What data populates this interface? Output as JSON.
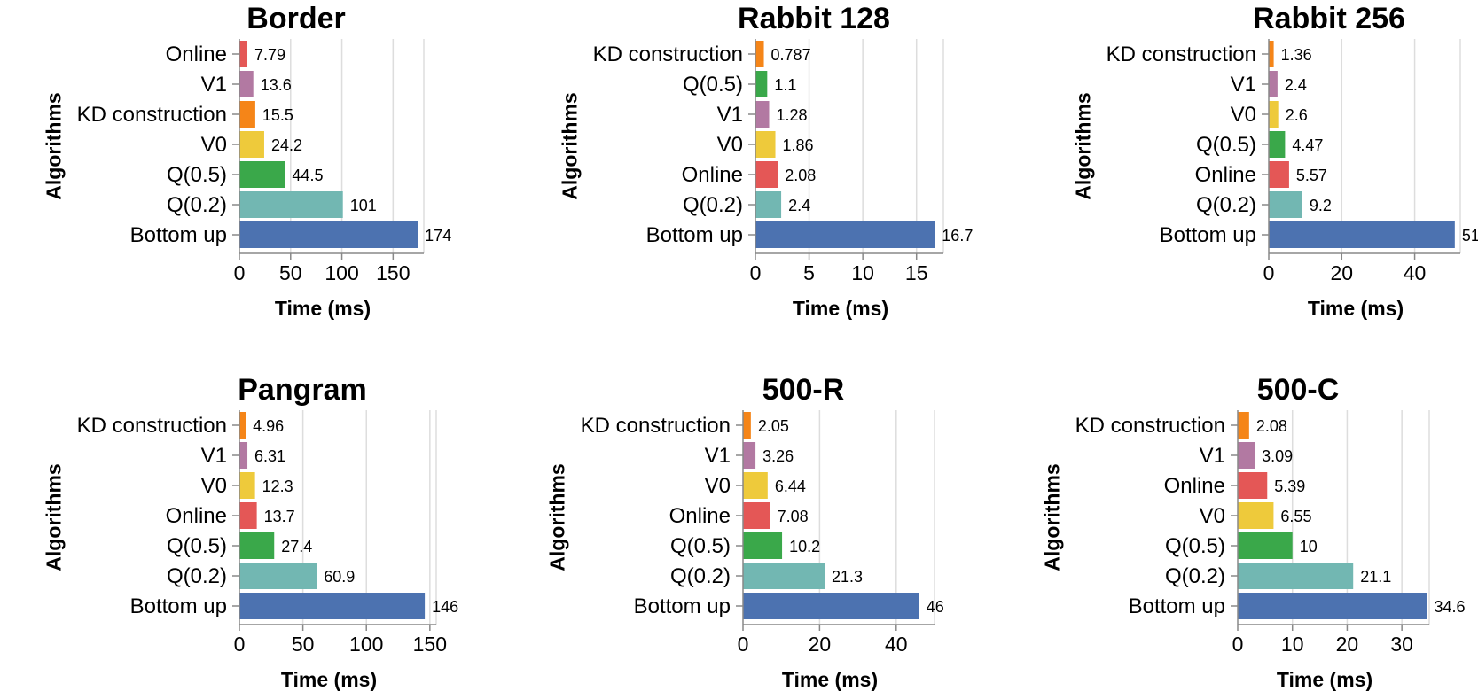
{
  "colors": {
    "KD construction": "#f58518",
    "V1": "#b279a2",
    "V0": "#eeca3b",
    "Online": "#e45756",
    "Q(0.5)": "#3aa84a",
    "Q(0.2)": "#72b7b2",
    "Bottom up": "#4c72b0"
  },
  "chart_data": [
    {
      "type": "bar",
      "orientation": "horizontal",
      "title": "Border",
      "xlabel": "Time (ms)",
      "ylabel": "Algorithms",
      "categories": [
        "Online",
        "V1",
        "KD construction",
        "V0",
        "Q(0.5)",
        "Q(0.2)",
        "Bottom up"
      ],
      "values": [
        7.79,
        13.6,
        15.5,
        24.2,
        44.5,
        101,
        174
      ],
      "value_labels": [
        "7.79",
        "13.6",
        "15.5",
        "24.2",
        "44.5",
        "101",
        "174"
      ],
      "xticks": [
        0,
        50,
        100,
        150
      ],
      "xlim": [
        0,
        180
      ],
      "grid": true
    },
    {
      "type": "bar",
      "orientation": "horizontal",
      "title": "Rabbit 128",
      "xlabel": "Time (ms)",
      "ylabel": "Algorithms",
      "categories": [
        "KD construction",
        "Q(0.5)",
        "V1",
        "V0",
        "Online",
        "Q(0.2)",
        "Bottom up"
      ],
      "values": [
        0.787,
        1.1,
        1.28,
        1.86,
        2.08,
        2.4,
        16.7
      ],
      "value_labels": [
        "0.787",
        "1.1",
        "1.28",
        "1.86",
        "2.08",
        "2.4",
        "16.7"
      ],
      "xticks": [
        0,
        5,
        10,
        15
      ],
      "xlim": [
        0,
        17.5
      ],
      "grid": true
    },
    {
      "type": "bar",
      "orientation": "horizontal",
      "title": "Rabbit 256",
      "xlabel": "Time (ms)",
      "ylabel": "Algorithms",
      "categories": [
        "KD construction",
        "V1",
        "V0",
        "Q(0.5)",
        "Online",
        "Q(0.2)",
        "Bottom up"
      ],
      "values": [
        1.36,
        2.4,
        2.6,
        4.47,
        5.57,
        9.2,
        51
      ],
      "value_labels": [
        "1.36",
        "2.4",
        "2.6",
        "4.47",
        "5.57",
        "9.2",
        "51"
      ],
      "xticks": [
        0,
        20,
        40
      ],
      "xlim": [
        0,
        52.5
      ],
      "grid": true
    },
    {
      "type": "bar",
      "orientation": "horizontal",
      "title": "Pangram",
      "xlabel": "Time (ms)",
      "ylabel": "Algorithms",
      "categories": [
        "KD construction",
        "V1",
        "V0",
        "Online",
        "Q(0.5)",
        "Q(0.2)",
        "Bottom up"
      ],
      "values": [
        4.96,
        6.31,
        12.3,
        13.7,
        27.4,
        60.9,
        146
      ],
      "value_labels": [
        "4.96",
        "6.31",
        "12.3",
        "13.7",
        "27.4",
        "60.9",
        "146"
      ],
      "xticks": [
        0,
        50,
        100,
        150
      ],
      "xlim": [
        0,
        155
      ],
      "grid": true
    },
    {
      "type": "bar",
      "orientation": "horizontal",
      "title": "500-R",
      "xlabel": "Time (ms)",
      "ylabel": "Algorithms",
      "categories": [
        "KD construction",
        "V1",
        "V0",
        "Online",
        "Q(0.5)",
        "Q(0.2)",
        "Bottom up"
      ],
      "values": [
        2.05,
        3.26,
        6.44,
        7.08,
        10.2,
        21.3,
        46
      ],
      "value_labels": [
        "2.05",
        "3.26",
        "6.44",
        "7.08",
        "10.2",
        "21.3",
        "46"
      ],
      "xticks": [
        0,
        20,
        40
      ],
      "xlim": [
        0,
        50
      ],
      "grid": true
    },
    {
      "type": "bar",
      "orientation": "horizontal",
      "title": "500-C",
      "xlabel": "Time (ms)",
      "ylabel": "Algorithms",
      "categories": [
        "KD construction",
        "V1",
        "Online",
        "V0",
        "Q(0.5)",
        "Q(0.2)",
        "Bottom up"
      ],
      "values": [
        2.08,
        3.09,
        5.39,
        6.55,
        10,
        21.1,
        34.6
      ],
      "value_labels": [
        "2.08",
        "3.09",
        "5.39",
        "6.55",
        "10",
        "21.1",
        "34.6"
      ],
      "xticks": [
        0,
        10,
        20,
        30
      ],
      "xlim": [
        0,
        35
      ],
      "grid": true
    }
  ]
}
